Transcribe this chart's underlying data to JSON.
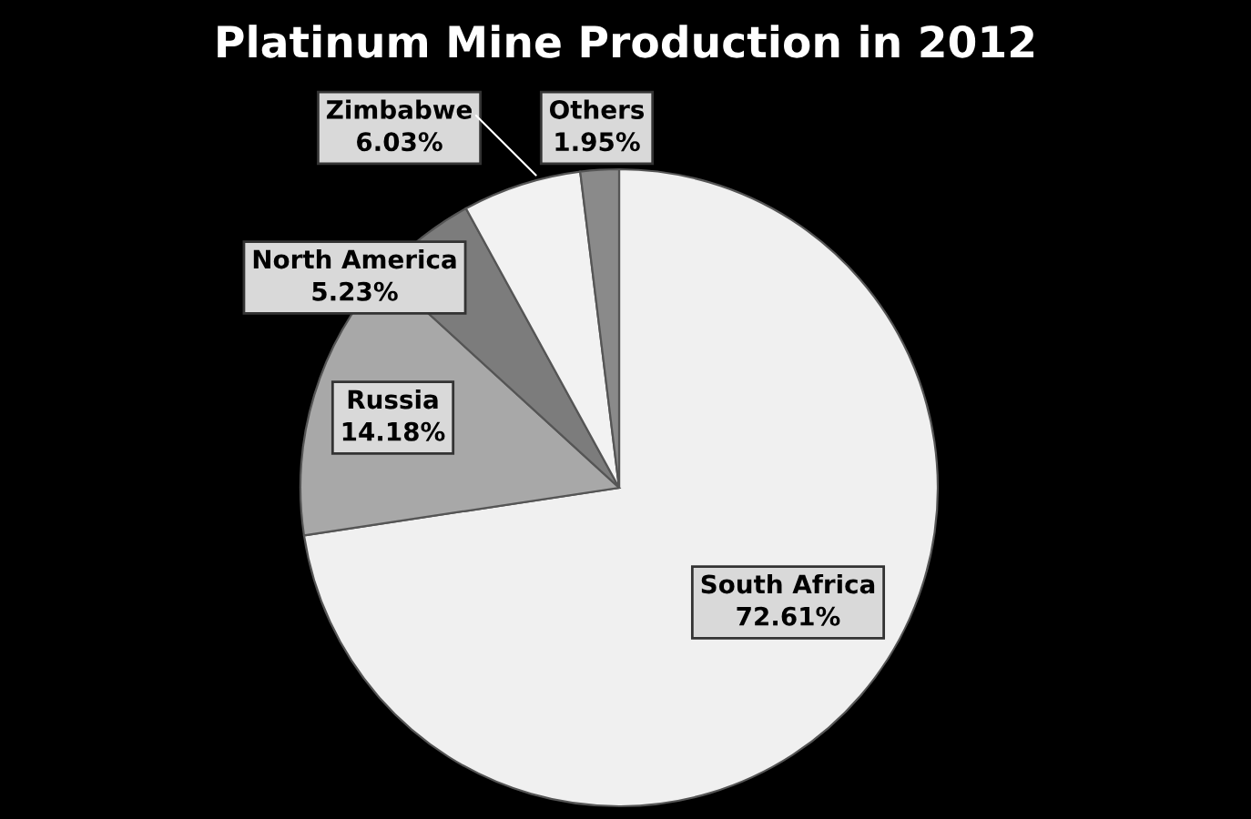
{
  "chart_data": {
    "type": "pie",
    "title": "Platinum Mine Production in 2012",
    "categories": [
      "South Africa",
      "Russia",
      "North America",
      "Zimbabwe",
      "Others"
    ],
    "values": [
      72.61,
      14.18,
      5.23,
      6.03,
      1.95
    ],
    "value_labels": [
      "72.61%",
      "14.18%",
      "5.23%",
      "6.03%",
      "1.95%"
    ],
    "colors": [
      "#f0f0f0",
      "#a8a8a8",
      "#7c7c7c",
      "#f2f2f2",
      "#8a8a8a"
    ]
  }
}
